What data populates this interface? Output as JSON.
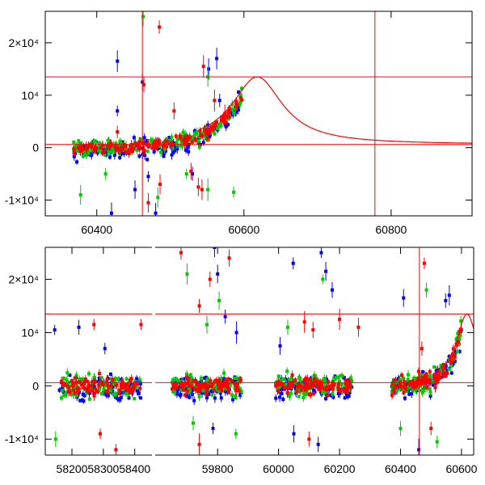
{
  "chart_data": [
    {
      "type": "scatter",
      "title": "",
      "xlabel": "",
      "ylabel": "",
      "xlim": [
        60330,
        60910
      ],
      "ylim": [
        -13000,
        26000
      ],
      "x_ticks": [
        {
          "value": 60400,
          "label": "60400"
        },
        {
          "value": 60600,
          "label": "60600"
        },
        {
          "value": 60800,
          "label": "60800"
        }
      ],
      "y_ticks": [
        {
          "value": -10000,
          "label": "-1×10⁴"
        },
        {
          "value": 0,
          "label": "0"
        },
        {
          "value": 10000,
          "label": "10⁴"
        },
        {
          "value": 20000,
          "label": "2×10⁴"
        }
      ],
      "hlines": [
        13500,
        600
      ],
      "vlines": [
        60462,
        60778
      ],
      "model_peak": {
        "x": 60618,
        "y": 13500,
        "base": 600,
        "width": 42
      },
      "series": [
        {
          "color": "#0000ff",
          "outliers": [
            [
              60428,
              16500
            ],
            [
              60428,
              7000
            ],
            [
              60462,
              12500
            ],
            [
              60552,
              15000
            ],
            [
              60563,
              17000
            ],
            [
              60567,
              9000
            ],
            [
              60420,
              -12500
            ],
            [
              60480,
              -12500
            ],
            [
              60452,
              -8000
            ],
            [
              60530,
              -5000
            ],
            [
              60470,
              -5500
            ]
          ]
        },
        {
          "color": "#00cc00",
          "outliers": [
            [
              60463,
              25000
            ],
            [
              60551,
              13500
            ],
            [
              60378,
              -9000
            ],
            [
              60483,
              -9500
            ],
            [
              60522,
              -5000
            ],
            [
              60551,
              -8000
            ],
            [
              60586,
              -8500
            ],
            [
              60412,
              -5000
            ]
          ]
        },
        {
          "color": "#ff0000",
          "outliers": [
            [
              60485,
              23000
            ],
            [
              60464,
              12000
            ],
            [
              60428,
              3000
            ],
            [
              60505,
              7000
            ],
            [
              60545,
              15500
            ],
            [
              60560,
              9000
            ],
            [
              60574,
              6500
            ],
            [
              60528,
              -4500
            ],
            [
              60538,
              -7500
            ],
            [
              60470,
              -10500
            ],
            [
              60486,
              -7000
            ],
            [
              60543,
              -8000
            ]
          ]
        }
      ]
    },
    {
      "type": "scatter",
      "title": "",
      "xlabel": "",
      "ylabel": "",
      "ylim": [
        -13000,
        26000
      ],
      "panels": [
        {
          "xlim": [
            58115,
            58460
          ],
          "x_ticks": [
            {
              "value": 58200,
              "label": "58200"
            },
            {
              "value": 58300,
              "label": "58300"
            },
            {
              "value": 58400,
              "label": "58400"
            }
          ]
        },
        {
          "xlim": [
            59590,
            60640
          ],
          "x_ticks": [
            {
              "value": 59800,
              "label": "59800"
            },
            {
              "value": 60000,
              "label": "60000"
            },
            {
              "value": 60200,
              "label": "60200"
            },
            {
              "value": 60400,
              "label": "60400"
            },
            {
              "value": 60600,
              "label": "60600"
            }
          ]
        }
      ],
      "gap_break": [
        58460,
        59610
      ],
      "y_ticks": [
        {
          "value": -10000,
          "label": "-1×10⁴"
        },
        {
          "value": 0,
          "label": "0"
        },
        {
          "value": 10000,
          "label": "10⁴"
        },
        {
          "value": 20000,
          "label": "2×10⁴"
        }
      ],
      "hlines": [
        13500,
        600
      ],
      "vlines": [
        60462
      ],
      "model_peak": {
        "x": 60618,
        "y": 13500,
        "base": 600,
        "width": 42
      },
      "observing_seasons": [
        [
          58160,
          58420
        ],
        [
          59650,
          59880
        ],
        [
          59990,
          60240
        ],
        [
          60370,
          60600
        ]
      ],
      "series": [
        {
          "color": "#0000ff",
          "outliers": [
            [
              58145,
              10500
            ],
            [
              58222,
              11000
            ],
            [
              58305,
              7000
            ],
            [
              59790,
              26000
            ],
            [
              59800,
              21000
            ],
            [
              59825,
              13000
            ],
            [
              59862,
              10000
            ],
            [
              60005,
              7500
            ],
            [
              60048,
              23000
            ],
            [
              60140,
              25000
            ],
            [
              60155,
              21500
            ],
            [
              60176,
              18000
            ],
            [
              60410,
              16500
            ],
            [
              60548,
              16000
            ],
            [
              60560,
              17000
            ],
            [
              60050,
              -9000
            ],
            [
              60130,
              -11000
            ],
            [
              59785,
              -8000
            ],
            [
              60460,
              -12000
            ]
          ]
        },
        {
          "color": "#00cc00",
          "outliers": [
            [
              59700,
              21000
            ],
            [
              59765,
              11500
            ],
            [
              59805,
              16000
            ],
            [
              60030,
              11000
            ],
            [
              60145,
              20000
            ],
            [
              60485,
              18000
            ],
            [
              60520,
              -10500
            ],
            [
              58148,
              -10000
            ],
            [
              59720,
              -7000
            ],
            [
              59860,
              -9000
            ],
            [
              60400,
              -8000
            ]
          ]
        },
        {
          "color": "#ff0000",
          "outliers": [
            [
              59680,
              25000
            ],
            [
              59740,
              15000
            ],
            [
              59775,
              20000
            ],
            [
              59838,
              24000
            ],
            [
              60085,
              12000
            ],
            [
              60113,
              10500
            ],
            [
              60200,
              12500
            ],
            [
              60262,
              11000
            ],
            [
              58270,
              11500
            ],
            [
              58420,
              11500
            ],
            [
              60478,
              23000
            ],
            [
              60470,
              7000
            ],
            [
              58290,
              -9000
            ],
            [
              58340,
              -12000
            ],
            [
              59740,
              -11000
            ],
            [
              60100,
              -10000
            ],
            [
              60500,
              -8000
            ]
          ]
        }
      ]
    }
  ]
}
